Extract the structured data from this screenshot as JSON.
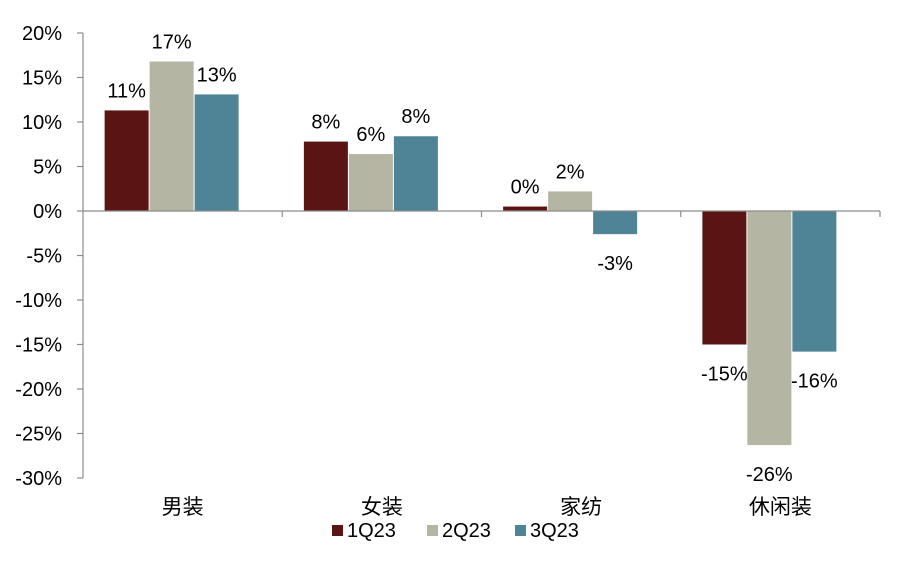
{
  "chart_data": {
    "type": "bar",
    "title": "",
    "xlabel": "",
    "ylabel": "",
    "categories": [
      "男装",
      "女装",
      "家纺",
      "休闲装"
    ],
    "series": [
      {
        "name": "1Q23",
        "values": [
          11.3,
          7.8,
          0.5,
          -15.0
        ],
        "labels": [
          "11%",
          "8%",
          "0%",
          "-15%"
        ],
        "color": "#5b1414"
      },
      {
        "name": "2Q23",
        "values": [
          16.8,
          6.4,
          2.2,
          -26.3
        ],
        "labels": [
          "17%",
          "6%",
          "2%",
          "-26%"
        ],
        "color": "#b5b5a3"
      },
      {
        "name": "3Q23",
        "values": [
          13.1,
          8.4,
          -2.6,
          -15.8
        ],
        "labels": [
          "13%",
          "8%",
          "-3%",
          "-16%"
        ],
        "color": "#4e8496"
      }
    ],
    "ylim": [
      -30,
      20
    ],
    "yticks": [
      20,
      15,
      10,
      5,
      0,
      -5,
      -10,
      -15,
      -20,
      -25,
      -30
    ],
    "ytick_labels": [
      "20%",
      "15%",
      "10%",
      "5%",
      "0%",
      "-5%",
      "-10%",
      "-15%",
      "-20%",
      "-25%",
      "-30%"
    ],
    "legend_position": "bottom",
    "grid": false
  }
}
